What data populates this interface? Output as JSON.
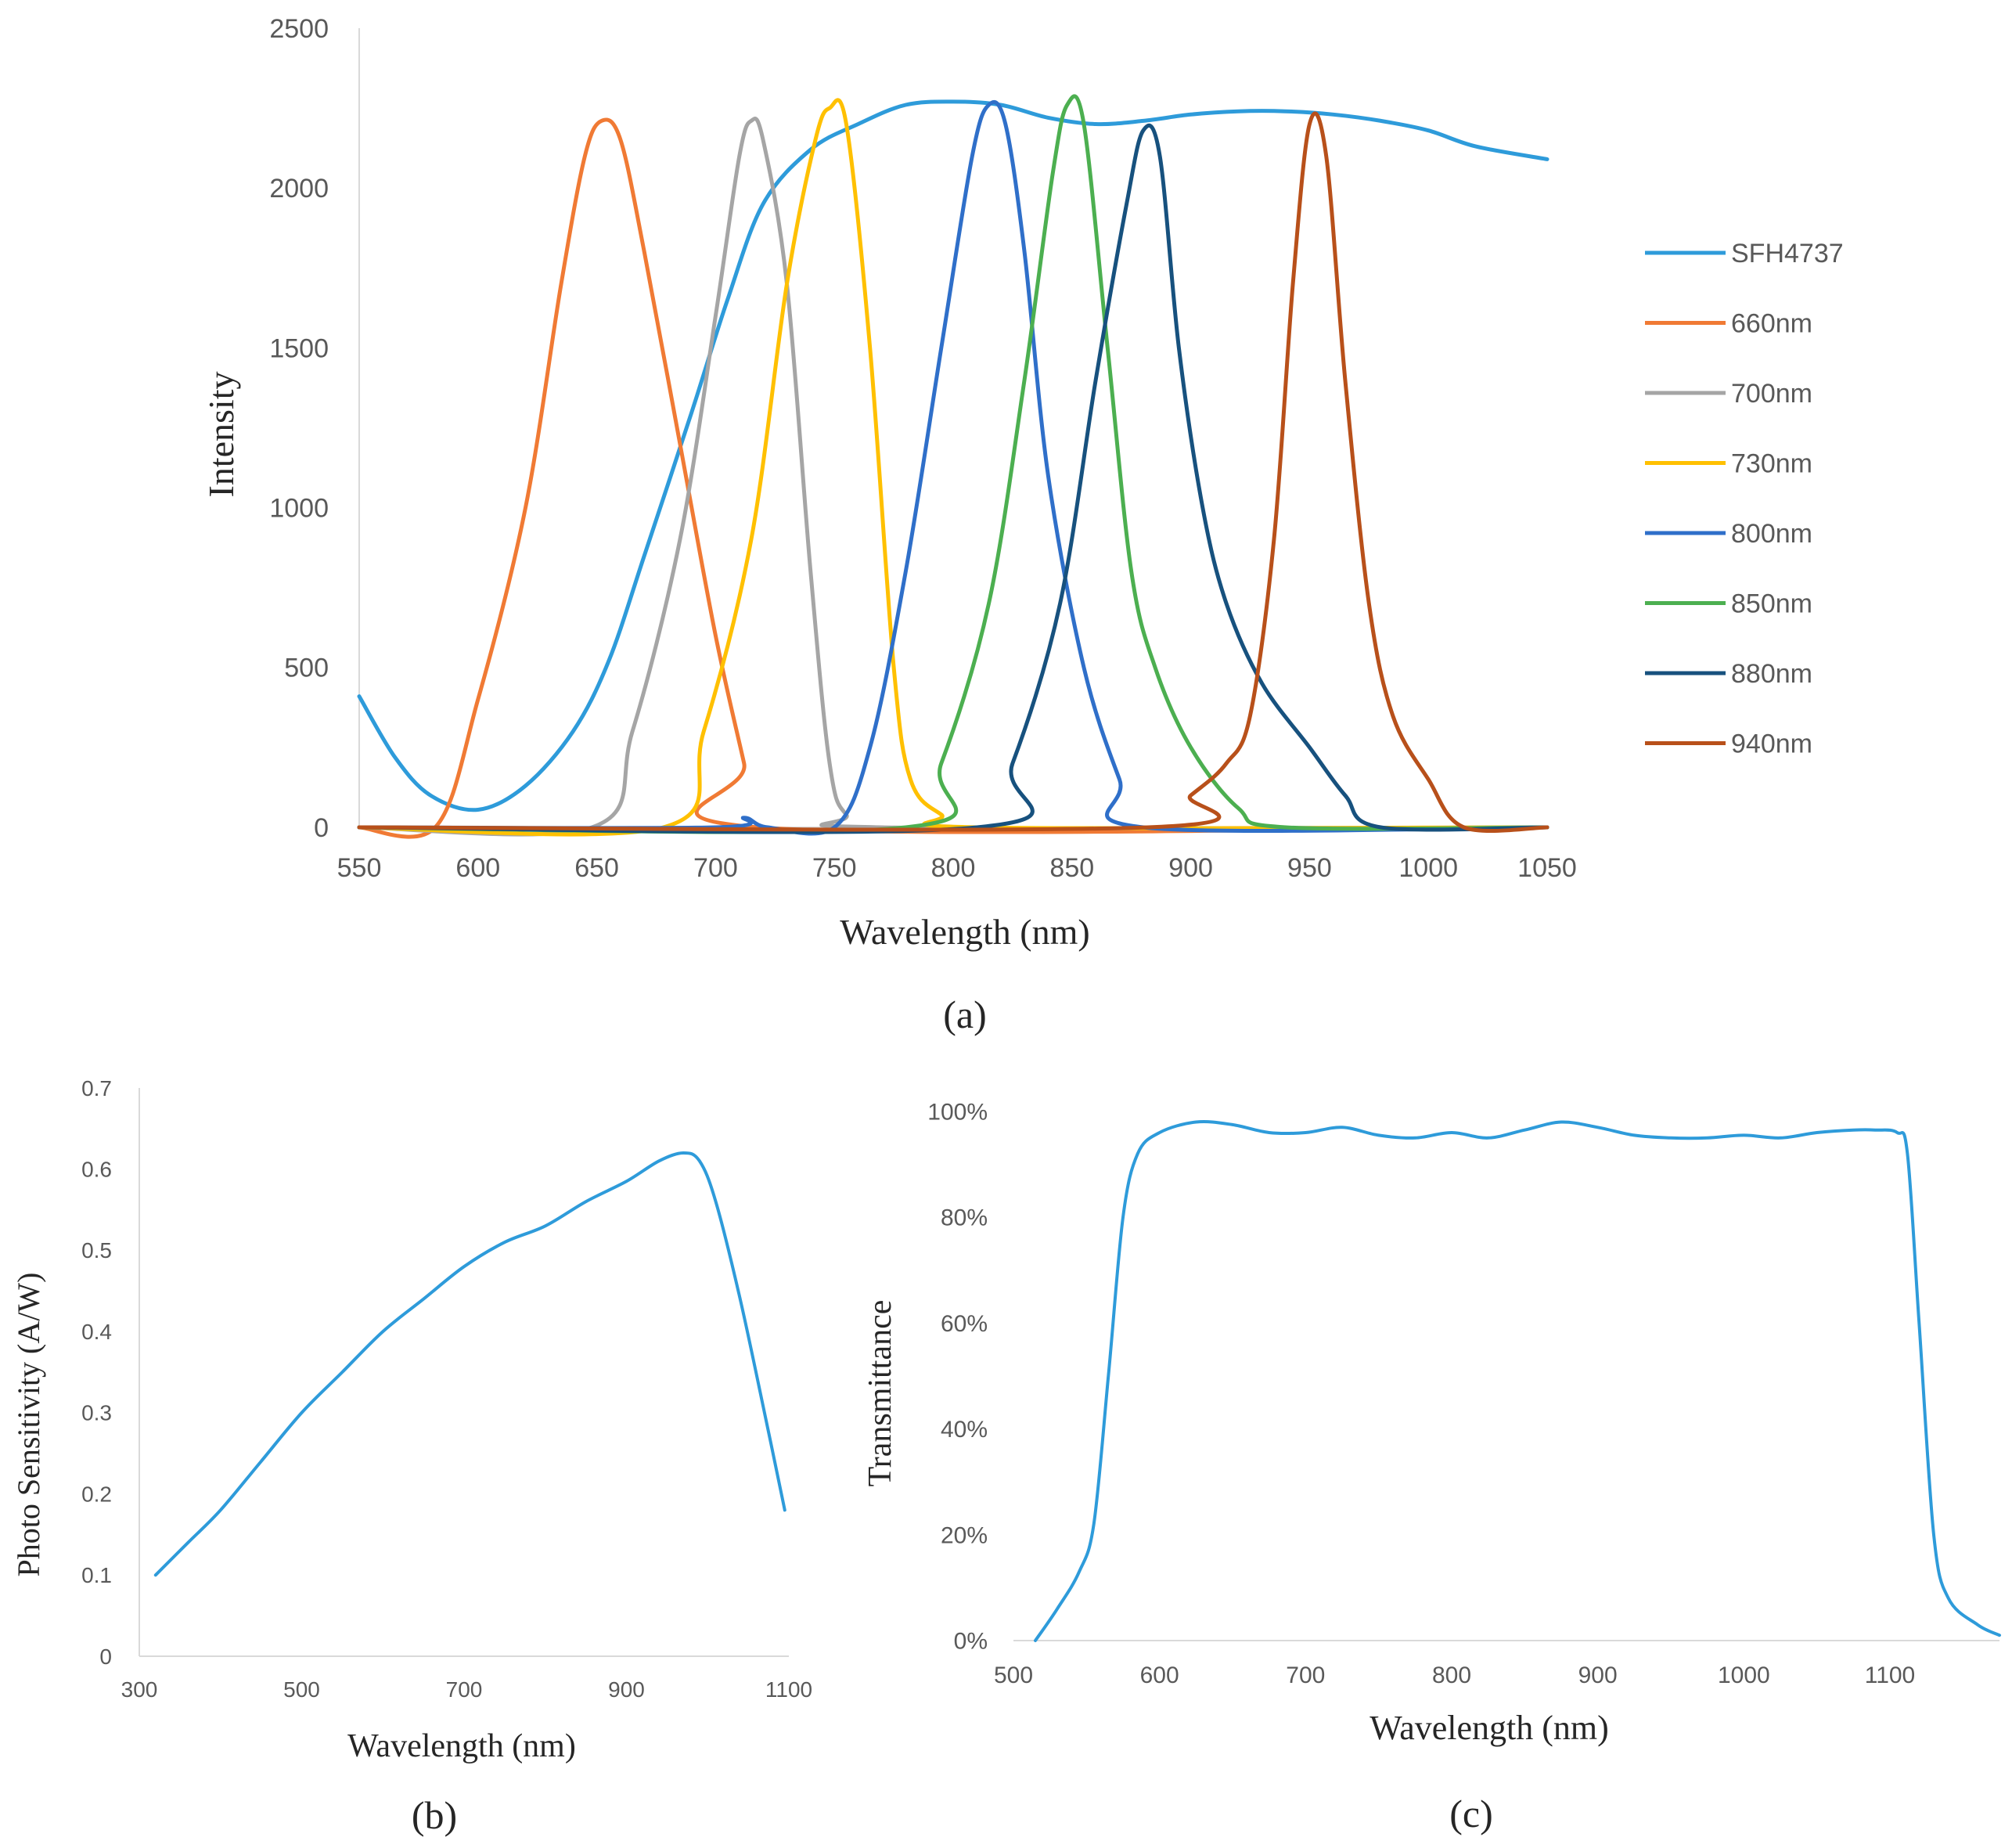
{
  "chart_data": [
    {
      "id": "a",
      "type": "line",
      "caption": "(a)",
      "xlabel": "Wavelength (nm)",
      "ylabel": "Intensity",
      "xlim": [
        550,
        1050
      ],
      "ylim": [
        0,
        2500
      ],
      "xticks": [
        "550",
        "600",
        "650",
        "700",
        "750",
        "800",
        "850",
        "900",
        "950",
        "1000",
        "1050"
      ],
      "yticks": [
        "0",
        "500",
        "1000",
        "1500",
        "2000",
        "2500"
      ],
      "legend_position": "right",
      "series": [
        {
          "name": "SFH4737",
          "color": "#2E9BDA",
          "points": [
            [
              550,
              410
            ],
            [
              565,
              220
            ],
            [
              580,
              100
            ],
            [
              600,
              55
            ],
            [
              620,
              130
            ],
            [
              640,
              300
            ],
            [
              655,
              520
            ],
            [
              670,
              850
            ],
            [
              690,
              1300
            ],
            [
              705,
              1650
            ],
            [
              720,
              1950
            ],
            [
              740,
              2120
            ],
            [
              760,
              2200
            ],
            [
              780,
              2260
            ],
            [
              800,
              2270
            ],
            [
              820,
              2260
            ],
            [
              840,
              2220
            ],
            [
              860,
              2200
            ],
            [
              880,
              2210
            ],
            [
              900,
              2230
            ],
            [
              920,
              2240
            ],
            [
              940,
              2240
            ],
            [
              960,
              2230
            ],
            [
              980,
              2210
            ],
            [
              1000,
              2180
            ],
            [
              1020,
              2130
            ],
            [
              1050,
              2090
            ]
          ]
        },
        {
          "name": "660nm",
          "color": "#F07A34",
          "points": [
            [
              550,
              0
            ],
            [
              582,
              0
            ],
            [
              600,
              400
            ],
            [
              620,
              1000
            ],
            [
              635,
              1700
            ],
            [
              645,
              2100
            ],
            [
              652,
              2210
            ],
            [
              660,
              2150
            ],
            [
              670,
              1800
            ],
            [
              685,
              1200
            ],
            [
              700,
              600
            ],
            [
              712,
              200
            ],
            [
              718,
              0
            ],
            [
              1050,
              0
            ]
          ]
        },
        {
          "name": "700nm",
          "color": "#A5A5A5",
          "points": [
            [
              550,
              0
            ],
            [
              648,
              0
            ],
            [
              665,
              300
            ],
            [
              685,
              900
            ],
            [
              700,
              1600
            ],
            [
              710,
              2100
            ],
            [
              715,
              2210
            ],
            [
              720,
              2150
            ],
            [
              730,
              1700
            ],
            [
              740,
              800
            ],
            [
              748,
              200
            ],
            [
              755,
              40
            ],
            [
              770,
              0
            ],
            [
              1050,
              0
            ]
          ]
        },
        {
          "name": "730nm",
          "color": "#FFC000",
          "points": [
            [
              550,
              0
            ],
            [
              678,
              0
            ],
            [
              695,
              300
            ],
            [
              715,
              900
            ],
            [
              730,
              1700
            ],
            [
              742,
              2150
            ],
            [
              748,
              2250
            ],
            [
              755,
              2200
            ],
            [
              765,
              1500
            ],
            [
              775,
              500
            ],
            [
              782,
              150
            ],
            [
              795,
              40
            ],
            [
              810,
              0
            ],
            [
              1050,
              0
            ]
          ]
        },
        {
          "name": "800nm",
          "color": "#2F6FC9",
          "points": [
            [
              550,
              0
            ],
            [
              700,
              0
            ],
            [
              712,
              30
            ],
            [
              722,
              0
            ],
            [
              750,
              0
            ],
            [
              765,
              250
            ],
            [
              780,
              800
            ],
            [
              795,
              1500
            ],
            [
              808,
              2100
            ],
            [
              815,
              2260
            ],
            [
              822,
              2200
            ],
            [
              830,
              1800
            ],
            [
              840,
              1100
            ],
            [
              855,
              500
            ],
            [
              870,
              150
            ],
            [
              880,
              0
            ],
            [
              1050,
              0
            ]
          ]
        },
        {
          "name": "850nm",
          "color": "#4CAF50",
          "points": [
            [
              550,
              0
            ],
            [
              780,
              0
            ],
            [
              795,
              200
            ],
            [
              815,
              700
            ],
            [
              830,
              1400
            ],
            [
              842,
              2050
            ],
            [
              848,
              2260
            ],
            [
              855,
              2200
            ],
            [
              865,
              1500
            ],
            [
              875,
              800
            ],
            [
              885,
              500
            ],
            [
              900,
              250
            ],
            [
              920,
              60
            ],
            [
              940,
              0
            ],
            [
              1050,
              0
            ]
          ]
        },
        {
          "name": "880nm",
          "color": "#17517E",
          "points": [
            [
              550,
              0
            ],
            [
              810,
              0
            ],
            [
              825,
              200
            ],
            [
              845,
              700
            ],
            [
              860,
              1400
            ],
            [
              873,
              1950
            ],
            [
              880,
              2180
            ],
            [
              887,
              2100
            ],
            [
              895,
              1500
            ],
            [
              905,
              1000
            ],
            [
              915,
              700
            ],
            [
              930,
              450
            ],
            [
              950,
              250
            ],
            [
              965,
              100
            ],
            [
              980,
              0
            ],
            [
              1050,
              0
            ]
          ]
        },
        {
          "name": "940nm",
          "color": "#B8501A",
          "points": [
            [
              550,
              0
            ],
            [
              882,
              0
            ],
            [
              900,
              100
            ],
            [
              915,
              200
            ],
            [
              925,
              350
            ],
            [
              935,
              900
            ],
            [
              943,
              1700
            ],
            [
              950,
              2200
            ],
            [
              957,
              2100
            ],
            [
              965,
              1400
            ],
            [
              975,
              700
            ],
            [
              985,
              350
            ],
            [
              1000,
              150
            ],
            [
              1015,
              0
            ],
            [
              1050,
              0
            ]
          ]
        }
      ]
    },
    {
      "id": "b",
      "type": "line",
      "caption": "(b)",
      "xlabel": "Wavelength (nm)",
      "ylabel": "Photo Sensitivity (A/W)",
      "xlim": [
        300,
        1100
      ],
      "ylim": [
        0,
        0.7
      ],
      "xticks": [
        "300",
        "500",
        "700",
        "900",
        "1100"
      ],
      "yticks": [
        "0",
        "0.1",
        "0.2",
        "0.3",
        "0.4",
        "0.5",
        "0.6",
        "0.7"
      ],
      "series": [
        {
          "name": "Photo Sensitivity",
          "color": "#2E9BDA",
          "points": [
            [
              320,
              0.1
            ],
            [
              360,
              0.14
            ],
            [
              400,
              0.18
            ],
            [
              450,
              0.24
            ],
            [
              500,
              0.3
            ],
            [
              550,
              0.35
            ],
            [
              600,
              0.4
            ],
            [
              650,
              0.44
            ],
            [
              700,
              0.48
            ],
            [
              750,
              0.51
            ],
            [
              800,
              0.53
            ],
            [
              850,
              0.56
            ],
            [
              900,
              0.585
            ],
            [
              940,
              0.61
            ],
            [
              970,
              0.62
            ],
            [
              990,
              0.61
            ],
            [
              1010,
              0.56
            ],
            [
              1040,
              0.44
            ],
            [
              1070,
              0.3
            ],
            [
              1095,
              0.18
            ]
          ]
        }
      ]
    },
    {
      "id": "c",
      "type": "line",
      "caption": "(c)",
      "xlabel": "Wavelength (nm)",
      "ylabel": "Transmittance",
      "xlim": [
        500,
        1175
      ],
      "ylim": [
        0,
        100
      ],
      "xticks": [
        "500",
        "600",
        "700",
        "800",
        "900",
        "1000",
        "1100"
      ],
      "yticks": [
        "0%",
        "20%",
        "40%",
        "60%",
        "80%",
        "100%"
      ],
      "series": [
        {
          "name": "Transmittance",
          "color": "#2E9BDA",
          "points": [
            [
              515,
              0
            ],
            [
              530,
              6
            ],
            [
              545,
              13
            ],
            [
              555,
              22
            ],
            [
              565,
              50
            ],
            [
              575,
              80
            ],
            [
              585,
              92
            ],
            [
              600,
              96
            ],
            [
              625,
              98
            ],
            [
              650,
              97.5
            ],
            [
              675,
              96
            ],
            [
              700,
              96
            ],
            [
              725,
              97
            ],
            [
              750,
              95.5
            ],
            [
              775,
              95
            ],
            [
              800,
              96
            ],
            [
              825,
              95
            ],
            [
              850,
              96.5
            ],
            [
              875,
              98
            ],
            [
              900,
              97
            ],
            [
              925,
              95.5
            ],
            [
              950,
              95
            ],
            [
              975,
              95
            ],
            [
              1000,
              95.5
            ],
            [
              1025,
              95
            ],
            [
              1050,
              96
            ],
            [
              1075,
              96.5
            ],
            [
              1090,
              96.5
            ],
            [
              1105,
              96
            ],
            [
              1112,
              92
            ],
            [
              1120,
              60
            ],
            [
              1130,
              20
            ],
            [
              1140,
              8
            ],
            [
              1160,
              3
            ],
            [
              1175,
              1
            ]
          ]
        }
      ]
    }
  ]
}
